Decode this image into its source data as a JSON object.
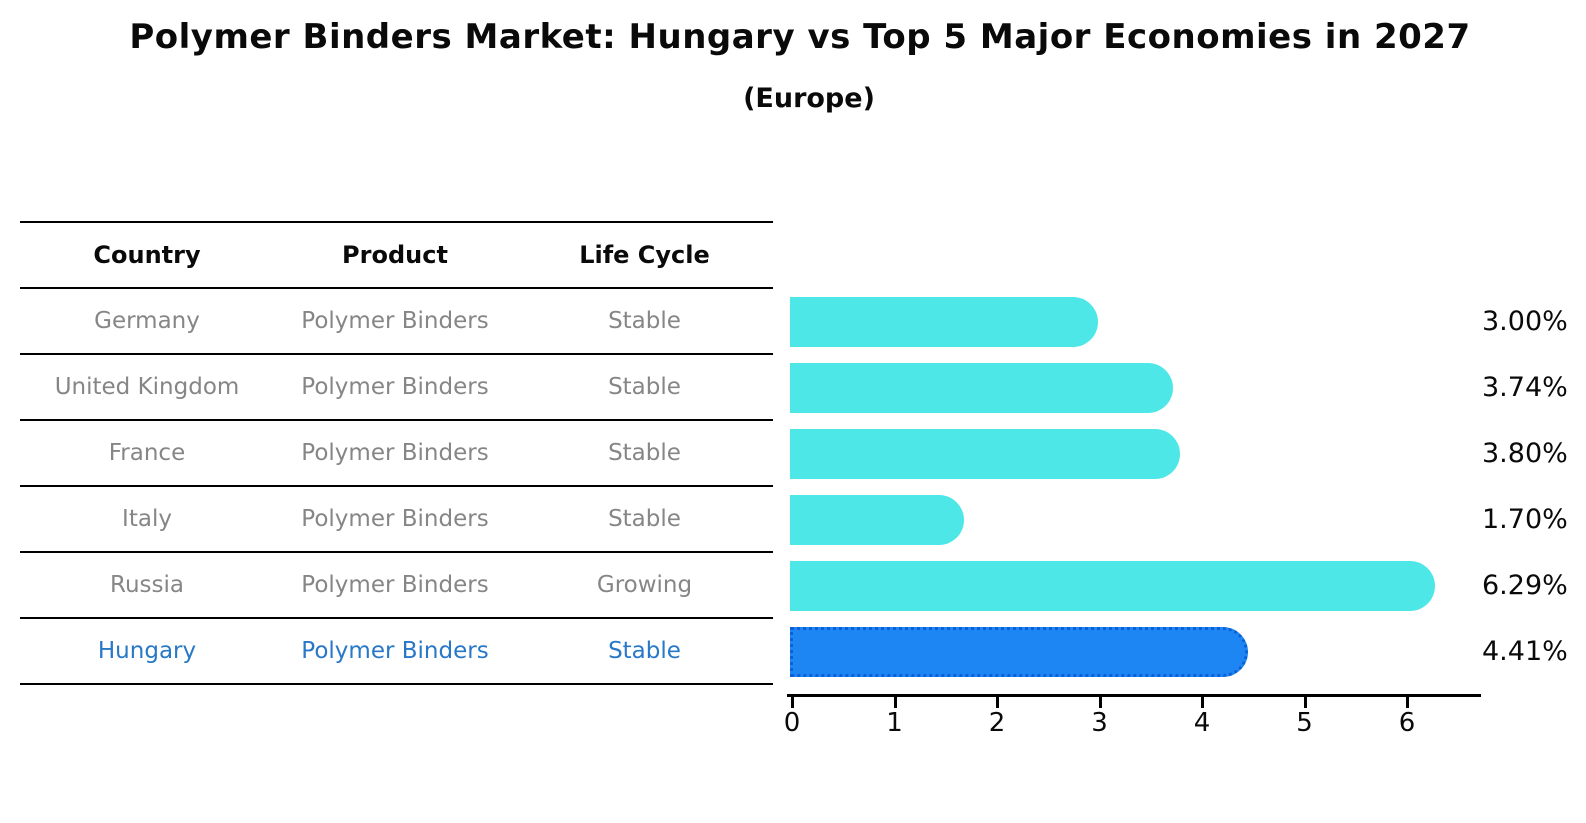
{
  "chart_data": {
    "type": "bar",
    "orientation": "horizontal",
    "title": "Polymer Binders Market: Hungary vs Top 5 Major Economies in 2027",
    "subtitle": "(Europe)",
    "categories": [
      "Germany",
      "United Kingdom",
      "France",
      "Italy",
      "Russia",
      "Hungary"
    ],
    "values": [
      3.0,
      3.74,
      3.8,
      1.7,
      6.29,
      4.41
    ],
    "value_labels": [
      "3.00%",
      "3.74%",
      "3.80%",
      "1.70%",
      "6.29%",
      "4.41%"
    ],
    "x_ticks": [
      0,
      1,
      2,
      3,
      4,
      5,
      6
    ],
    "xlim": [
      0,
      6.75
    ],
    "grid": false,
    "legend": "none",
    "bar_color": "#4de7e7",
    "highlight_index": 5,
    "highlight_color": "#1e86f2",
    "highlight_border_color": "#0b62d8"
  },
  "table": {
    "headers": [
      "Country",
      "Product",
      "Life Cycle"
    ],
    "rows": [
      {
        "country": "Germany",
        "product": "Polymer Binders",
        "life_cycle": "Stable",
        "highlight": false
      },
      {
        "country": "United Kingdom",
        "product": "Polymer Binders",
        "life_cycle": "Stable",
        "highlight": false
      },
      {
        "country": "France",
        "product": "Polymer Binders",
        "life_cycle": "Stable",
        "highlight": false
      },
      {
        "country": "Italy",
        "product": "Polymer Binders",
        "life_cycle": "Stable",
        "highlight": false
      },
      {
        "country": "Russia",
        "product": "Polymer Binders",
        "life_cycle": "Growing",
        "highlight": false
      },
      {
        "country": "Hungary",
        "product": "Polymer Binders",
        "life_cycle": "Stable",
        "highlight": true
      }
    ],
    "text_color": "#868686",
    "highlight_text_color": "#2878c8"
  }
}
